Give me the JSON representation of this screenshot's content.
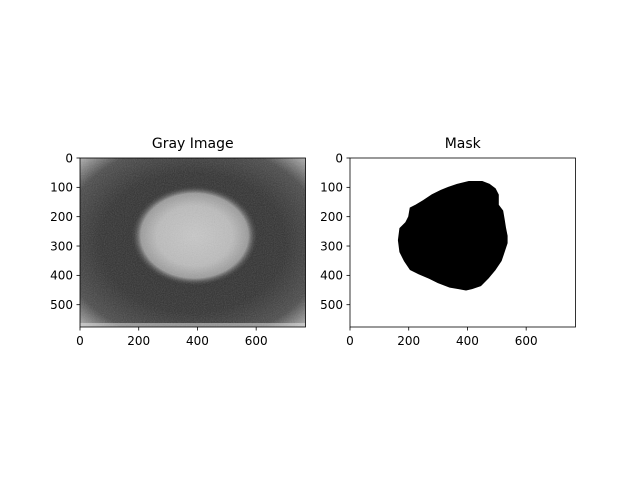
{
  "chart_data": [
    {
      "type": "heatmap",
      "title": "Gray Image",
      "xlabel": "",
      "ylabel": "",
      "colormap": "gray",
      "xlim": [
        0,
        768
      ],
      "ylim": [
        576,
        0
      ],
      "x_ticks": [
        0,
        200,
        400,
        600
      ],
      "y_ticks": [
        0,
        100,
        200,
        300,
        400,
        500
      ],
      "features": {
        "background_level": 0.22,
        "bright_blob": {
          "center": [
            390,
            265
          ],
          "radius_x": 215,
          "radius_y": 170,
          "level": 0.72
        },
        "vignette_edges": "bright corners"
      }
    },
    {
      "type": "heatmap",
      "title": "Mask",
      "xlabel": "",
      "ylabel": "",
      "colormap": "binary",
      "xlim": [
        0,
        768
      ],
      "ylim": [
        576,
        0
      ],
      "x_ticks": [
        0,
        200,
        400,
        600
      ],
      "y_ticks": [
        0,
        100,
        200,
        300,
        400,
        500
      ],
      "mask_outline": [
        [
          365,
          90
        ],
        [
          405,
          80
        ],
        [
          450,
          80
        ],
        [
          475,
          90
        ],
        [
          495,
          105
        ],
        [
          505,
          125
        ],
        [
          505,
          160
        ],
        [
          520,
          180
        ],
        [
          525,
          210
        ],
        [
          530,
          240
        ],
        [
          535,
          265
        ],
        [
          535,
          290
        ],
        [
          525,
          320
        ],
        [
          515,
          350
        ],
        [
          495,
          380
        ],
        [
          470,
          410
        ],
        [
          445,
          435
        ],
        [
          415,
          445
        ],
        [
          395,
          450
        ],
        [
          370,
          445
        ],
        [
          340,
          440
        ],
        [
          300,
          425
        ],
        [
          270,
          410
        ],
        [
          235,
          395
        ],
        [
          205,
          380
        ],
        [
          185,
          350
        ],
        [
          170,
          320
        ],
        [
          165,
          280
        ],
        [
          170,
          240
        ],
        [
          190,
          220
        ],
        [
          200,
          200
        ],
        [
          205,
          170
        ],
        [
          225,
          160
        ],
        [
          250,
          145
        ],
        [
          280,
          125
        ],
        [
          310,
          110
        ],
        [
          335,
          100
        ]
      ]
    }
  ]
}
